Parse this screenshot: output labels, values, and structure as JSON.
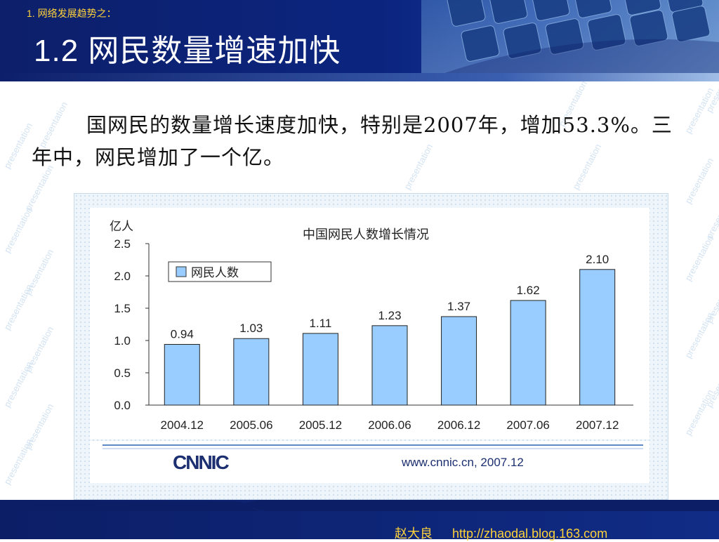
{
  "header": {
    "kicker": "1. 网络发展趋势之：",
    "title": "1.2  网民数量增速加快"
  },
  "body": {
    "paragraph": "国网民的数量增长速度加快，特别是2007年，增加53.3%。三年中，网民增加了一个亿。"
  },
  "watermark": {
    "text": "presentation"
  },
  "chart_data": {
    "type": "bar",
    "title": "中国网民人数增长情况",
    "ylabel": "亿人",
    "xlabel": "",
    "categories": [
      "2004.12",
      "2005.06",
      "2005.12",
      "2006.06",
      "2006.12",
      "2007.06",
      "2007.12"
    ],
    "series": [
      {
        "name": "网民人数",
        "values": [
          0.94,
          1.03,
          1.11,
          1.23,
          1.37,
          1.62,
          2.1
        ]
      }
    ],
    "value_labels": [
      "0.94",
      "1.03",
      "1.11",
      "1.23",
      "1.37",
      "1.62",
      "2.10"
    ],
    "ylim": [
      0,
      2.5
    ],
    "yticks": [
      "0.0",
      "0.5",
      "1.0",
      "1.5",
      "2.0",
      "2.5"
    ],
    "grid": false,
    "legend": "top-left",
    "bar_color": "#99ccff",
    "source_logo": "CNNIC",
    "source_note": "www.cnnic.cn,  2007.12"
  },
  "footer": {
    "author": "赵大良",
    "url": "http://zhaodal.blog.163.com"
  },
  "colors": {
    "header_bg": "#0d1f6a",
    "title_text": "#ffffff",
    "kicker_text": "#ffd23a",
    "footer_bg": "#0c1e66",
    "credit_text": "#ffd23a"
  }
}
